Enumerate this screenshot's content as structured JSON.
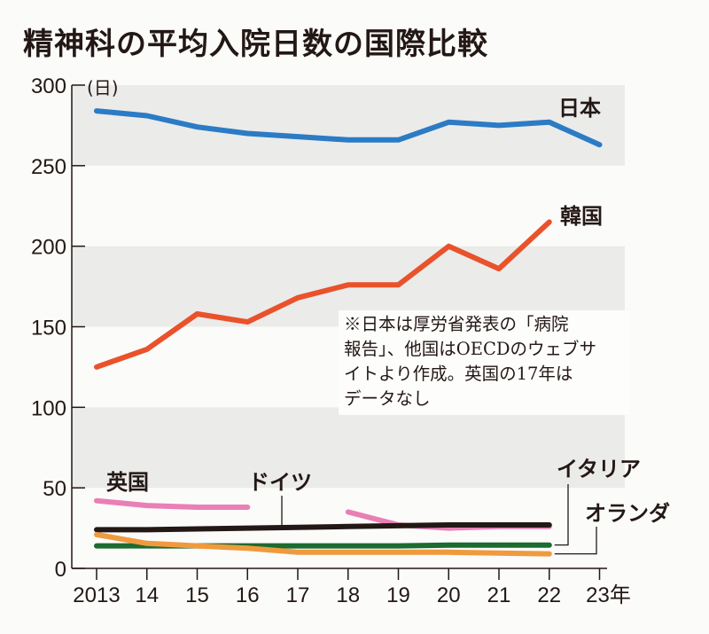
{
  "title": "精神科の平均入院日数の国際比較",
  "note": {
    "lines": [
      "※日本は厚労省発表の「病院",
      "報告」、他国はOECDのウェブサ",
      "イトより作成。英国の17年は",
      "データなし"
    ]
  },
  "chart_data": {
    "type": "line",
    "title": "精神科の平均入院日数の国際比較",
    "xlabel": "年",
    "ylabel": "(日)",
    "ylim": [
      0,
      300
    ],
    "yticks": [
      0,
      50,
      100,
      150,
      200,
      250,
      300
    ],
    "ytick_labels": [
      "0",
      "50",
      "100",
      "150",
      "200",
      "250",
      "300"
    ],
    "x": [
      2013,
      2014,
      2015,
      2016,
      2017,
      2018,
      2019,
      2020,
      2021,
      2022,
      2023
    ],
    "xtick_labels": [
      "2013",
      "14",
      "15",
      "16",
      "17",
      "18",
      "19",
      "20",
      "21",
      "22",
      "23年"
    ],
    "shaded_bands": [
      [
        50,
        100
      ],
      [
        150,
        200
      ],
      [
        250,
        300
      ]
    ],
    "grid": false,
    "legend": "direct-labels",
    "series": [
      {
        "name": "日本",
        "color": "#2b7bc5",
        "values": [
          284,
          281,
          274,
          270,
          268,
          266,
          266,
          277,
          275,
          277,
          263
        ]
      },
      {
        "name": "韓国",
        "color": "#e9522b",
        "values": [
          125,
          136,
          158,
          153,
          168,
          176,
          176,
          200,
          186,
          215,
          null
        ]
      },
      {
        "name": "英国",
        "color": "#ea7fb6",
        "values": [
          42,
          39,
          38,
          38,
          null,
          35,
          27,
          25,
          26,
          26,
          null
        ]
      },
      {
        "name": "ドイツ",
        "color": "#231815",
        "values": [
          24,
          24,
          24.5,
          25,
          25.5,
          26,
          26.5,
          27,
          27,
          27,
          null
        ]
      },
      {
        "name": "イタリア",
        "color": "#1c6b30",
        "values": [
          14,
          14,
          14,
          14,
          14,
          14,
          14,
          14.5,
          14.5,
          14.5,
          null
        ]
      },
      {
        "name": "オランダ",
        "color": "#f09a3e",
        "values": [
          21,
          15.5,
          14,
          12.5,
          10,
          10,
          10,
          10,
          9.5,
          9,
          null
        ]
      }
    ]
  }
}
